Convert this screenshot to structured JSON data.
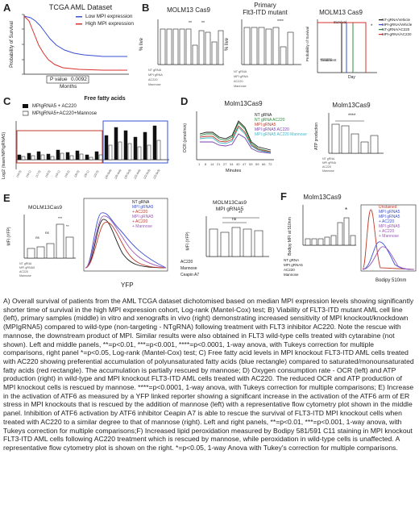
{
  "panel_labels": {
    "a": "A",
    "b": "B",
    "c": "C",
    "d": "D",
    "e": "E",
    "f": "F"
  },
  "panel_a": {
    "title": "TCGA AML Dataset",
    "legend_low": "Low MPI expression",
    "legend_high": "High MPI expression",
    "ylabel": "Probability of Survival",
    "xlabel": "Months",
    "pvalue_label": "P value",
    "pvalue": "0.0092",
    "colors": {
      "low": "#3a4fd6",
      "high": "#d9302c"
    }
  },
  "panel_b": {
    "left_title": "MOLM13 Cas9",
    "mid_title_1": "Primary",
    "mid_title_2": "Flt3-ITD mutant",
    "right_title": "MOLM13 Cas9",
    "ylabel": "% live",
    "survival_legend": [
      "NT-gRNA/Vehicle",
      "MPI-gRNA/Vehicle",
      "NT-gRNA/AC220",
      "MPI-gRNA/AC220"
    ],
    "survival_ylabel": "Probability of Survival",
    "survival_xlabel": "Day",
    "treatment_label": "Treatment",
    "survival_title_small": "Survival"
  },
  "panel_c": {
    "title": "Free fatty acids",
    "legend": [
      "MPIgRNA5 + AC220",
      "MPIgRNA5+AC220+Mannose"
    ],
    "ylabel": "Log2 (Isam/MPIgRNA5)"
  },
  "panel_d": {
    "title": "Molm13Cas9",
    "legend": [
      "NT gRNA",
      "NT gRNA AC220",
      "MPI gRNA5",
      "MPI gRNA5 AC220",
      "MPI gRNA5 AC220 Mannose"
    ],
    "ylabel": "OCR (pmol/min)",
    "xlabel": "Minutes",
    "x_ticks": [
      "1",
      "8",
      "14",
      "21",
      "27",
      "34",
      "40",
      "47",
      "53",
      "59",
      "66",
      "72"
    ],
    "atp_title": "Molm13Cas9",
    "atp_ylabel": "ATP production",
    "atp_stars": "****",
    "colors": [
      "#1a1a1a",
      "#2b8a3e",
      "#c0392b",
      "#7a3fb0",
      "#3fb8c9"
    ]
  },
  "panel_e": {
    "left_title": "MOLM13Cas9",
    "left_ylabel": "MFI (YFP)",
    "flow_legend": [
      "NT gRNA",
      "MPI gRNA5",
      "+ AC220",
      "MPI gRNA5",
      "+ AC220",
      "+ Mannose"
    ],
    "flow_xlabel": "YFP",
    "right_title_1": "MOLM13Cas9",
    "right_title_2": "MPI gRNA5",
    "right_ylabel": "MFI (YFP)",
    "right_row_labels": [
      "AC220",
      "Mannose",
      "Ceapin A7"
    ],
    "ns": "ns",
    "stars2": "**"
  },
  "panel_f": {
    "title": "Molm13Cas9",
    "ylabel": "Bodipy MFI at 510nm",
    "row_labels": [
      "NT gRNA",
      "MPI gRNA5",
      "AC220",
      "Mannose"
    ],
    "flow_legend": [
      "Unstained",
      "MPI gRNA5",
      "MPI gRNA5",
      "+ AC220",
      "MPI gRNA5",
      "+ AC220",
      "+ Mannose"
    ],
    "flow_xlabel": "Bodipy 510nm",
    "star": "*"
  },
  "caption": "A) Overall survival of patients from the AML TCGA dataset dichotomised based on median MPI expression levels showing significantly shorter time of survival in the high MPI expression cohort, Log-rank (Mantel-Cox) test; B) Viability of FLT3-ITD mutant AML cell line (left), primary samples (middle) in vitro and xenografts in vivo (right) demonstrating increased sensitivity of MPI knockout/knockdown (MPIgRNA5) compared to wild-type (non-targeting - NTgRNA) following treatment with FLT3 inhibitor AC220. Note the rescue with mannose, the downstream product of MPI. Similar results were also obtained in FLT3 wild-type cells treated with cytarabine (not shown). Left and middle panels, **=p<0.01, ***=p<0.001, ****=p<0.0001, 1-way anova, with Tukeys correction for multiple comparisons, right panel *=p<0.05, Log-rank (Mantel-Cox) test; C) Free fatty acid levels in MPI knockout FLT3-ITD AML cells treated with AC220 showing preferential accumulation of polyunsaturated fatty acids (blue rectangle) compared to saturated/monounsaturated fatty acids (red rectangle). The accumulation is partially rescued by mannose; D) Oxygen consumption rate - OCR (left) and ATP production (right) in wild-type and MPI knockout FLT3-ITD AML cells treated with AC220. The reduced OCR and ATP production of MPI knockout cells is rescued by mannose. ****=p<0.0001, 1-way anova, with Tukeys correction for multiple comparisons; E) Increase in the activation of ATF6 as measured by a YFP linked reporter showing a significant increase in the activation of the ATF6 arm of ER stress in MPI knockouts that is rescued by the addition of mannose (left) with a representative flow cytometry plot shown in the middle panel. Inhibition of ATF6 activation by ATF6 inhibitor Ceapin A7 is able to rescue the survival of FLT3-ITD MPI knockout cells when treated with AC220 to a similar degree to that of mannose (right). Left and right panels, **=p<0.01, ***=p<0.001, 1-way anova, with Tukeys correction for multiple comparisons;F) Increased lipid peroxidation measured by Bodipy 581/591 C11 staining in MPI knockout FLT3-ITD AML cells following AC220 treatment which is rescued by mannose, while peroxidation in wild-type cells is unaffected. A representative flow cytometry plot is shown on the right. *=p<0.05, 1-way Anova with Tukey's correction for multiple comparisons."
}
